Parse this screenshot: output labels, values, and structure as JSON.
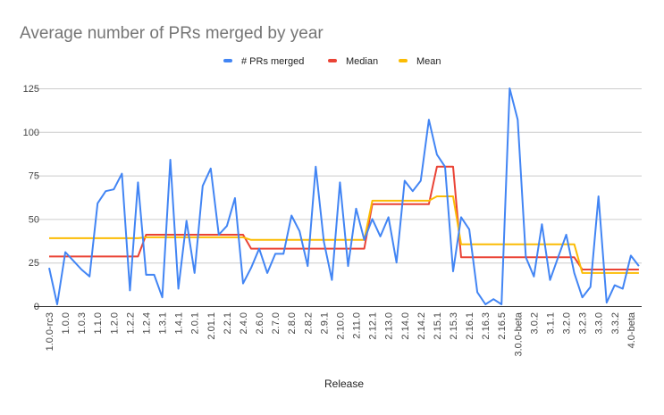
{
  "chart_data": {
    "type": "line",
    "title": "Average number of PRs merged by year",
    "xlabel": "Release",
    "ylabel": "",
    "ylim": [
      0,
      125
    ],
    "yticks": [
      0,
      25,
      50,
      75,
      100,
      125
    ],
    "grid": true,
    "legend_position": "top",
    "x_tick_labels": [
      "1.0.0-rc3",
      "1.0.0",
      "1.0.3",
      "1.1.0",
      "1.2.0",
      "1.2.2",
      "1.2.4",
      "1.3.1",
      "1.4.1",
      "2.0.1",
      "2.01.1",
      "2.2.1",
      "2.4.0",
      "2.6.0",
      "2.7.0",
      "2.8.0",
      "2.8.2",
      "2.9.1",
      "2.10.0",
      "2.11.0",
      "2.12.1",
      "2.13.0",
      "2.14.0",
      "2.14.2",
      "2.15.1",
      "2.15.3",
      "2.16.1",
      "2.16.3",
      "2.16.5",
      "3.0.0-beta",
      "3.0.2",
      "3.1.1",
      "3.2.0",
      "3.2.3",
      "3.3.0",
      "3.3.2",
      "4.0-beta"
    ],
    "x_tick_every": 2,
    "series": [
      {
        "name": "# PRs merged",
        "color": "#4285f4",
        "values": [
          22,
          1,
          31,
          26,
          21,
          17,
          59,
          66,
          67,
          76,
          9,
          71,
          18,
          18,
          5,
          84,
          10,
          49,
          19,
          69,
          79,
          41,
          46,
          62,
          13,
          22,
          33,
          19,
          30,
          30,
          52,
          43,
          23,
          80,
          37,
          15,
          71,
          23,
          56,
          38,
          50,
          40,
          51,
          25,
          72,
          66,
          72,
          107,
          87,
          80,
          20,
          51,
          44,
          8,
          1,
          4,
          1,
          125,
          107,
          28,
          17,
          47,
          15,
          28,
          41,
          19,
          5,
          11,
          63,
          2,
          12,
          10,
          29,
          23
        ]
      },
      {
        "name": "Median",
        "color": "#ea4335",
        "values": [
          28.5,
          28.5,
          28.5,
          28.5,
          28.5,
          28.5,
          28.5,
          28.5,
          28.5,
          28.5,
          28.5,
          28.5,
          41,
          41,
          41,
          41,
          41,
          41,
          41,
          41,
          41,
          41,
          41,
          41,
          41,
          33,
          33,
          33,
          33,
          33,
          33,
          33,
          33,
          33,
          33,
          33,
          33,
          33,
          33,
          33,
          58.5,
          58.5,
          58.5,
          58.5,
          58.5,
          58.5,
          58.5,
          58.5,
          80,
          80,
          80,
          28,
          28,
          28,
          28,
          28,
          28,
          28,
          28,
          28,
          28,
          28,
          28,
          28,
          28,
          28,
          21,
          21,
          21,
          21,
          21,
          21,
          21,
          21
        ]
      },
      {
        "name": "Mean",
        "color": "#fbbc04",
        "values": [
          39,
          39,
          39,
          39,
          39,
          39,
          39,
          39,
          39,
          39,
          39,
          39,
          39.5,
          39.5,
          39.5,
          39.5,
          39.5,
          39.5,
          39.5,
          39.5,
          39.5,
          39.5,
          39.5,
          39.5,
          39.5,
          38,
          38,
          38,
          38,
          38,
          38,
          38,
          38,
          38,
          38,
          38,
          38,
          38,
          38,
          38,
          60.5,
          60.5,
          60.5,
          60.5,
          60.5,
          60.5,
          60.5,
          60.5,
          63,
          63,
          63,
          35.5,
          35.5,
          35.5,
          35.5,
          35.5,
          35.5,
          35.5,
          35.5,
          35.5,
          35.5,
          35.5,
          35.5,
          35.5,
          35.5,
          35.5,
          19,
          19,
          19,
          19,
          19,
          19,
          19,
          19
        ]
      }
    ]
  }
}
